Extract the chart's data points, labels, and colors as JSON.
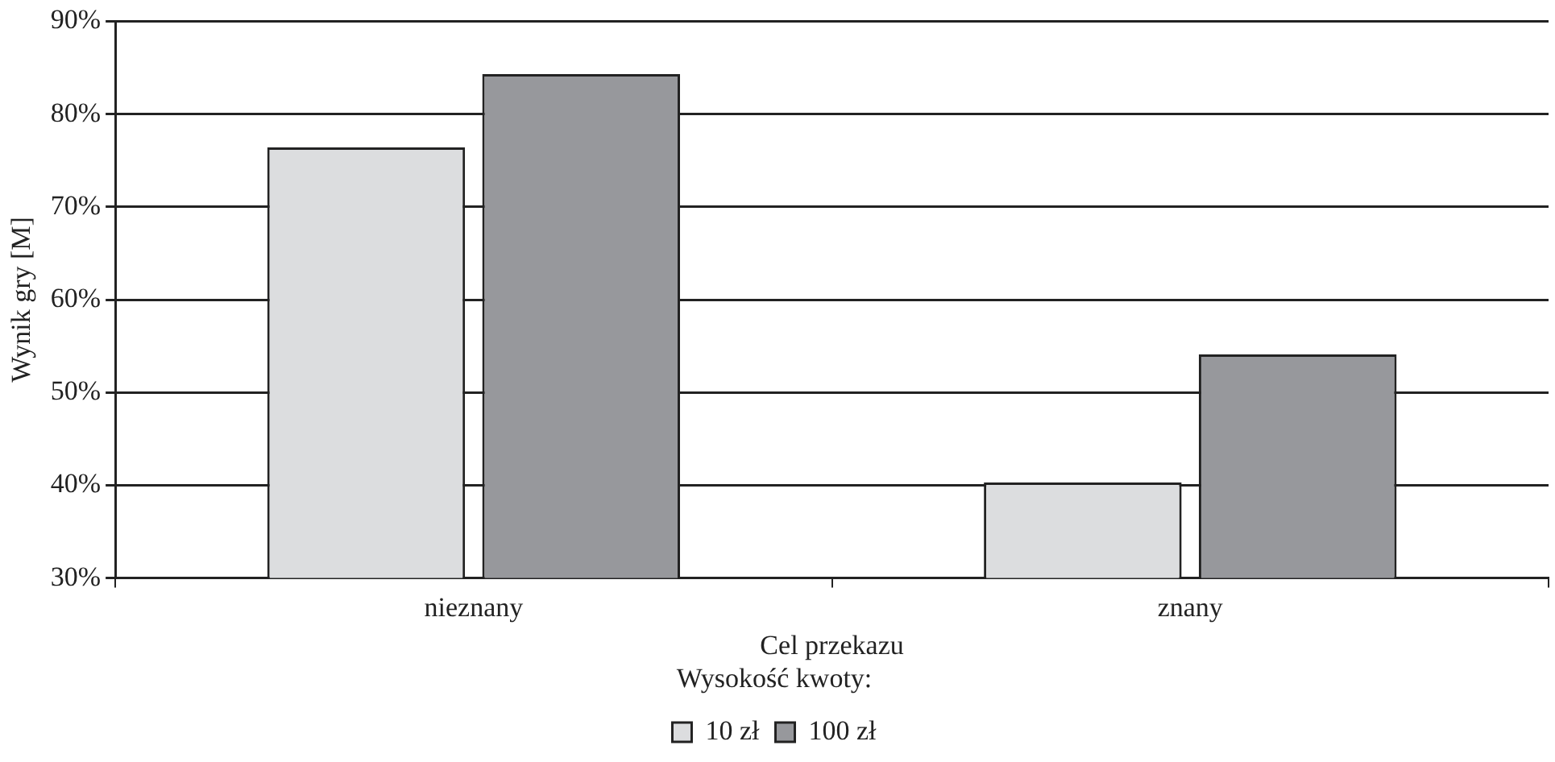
{
  "chart_data": {
    "type": "bar",
    "xlabel": "Cel przekazu",
    "ylabel": "Wynik gry [M]",
    "legend_title": "Wysokość kwoty:",
    "categories": [
      "nieznany",
      "znany"
    ],
    "series": [
      {
        "name": "10 zł",
        "color": "#dcdddf",
        "values": [
          76.4,
          40.3
        ]
      },
      {
        "name": "100 zł",
        "color": "#97989c",
        "values": [
          84.3,
          54.1
        ]
      }
    ],
    "ylim": [
      30,
      90
    ],
    "yticks": [
      {
        "value": 30,
        "label": "30%"
      },
      {
        "value": 40,
        "label": "40%"
      },
      {
        "value": 50,
        "label": "50%"
      },
      {
        "value": 60,
        "label": "60%"
      },
      {
        "value": 70,
        "label": "70%"
      },
      {
        "value": 80,
        "label": "80%"
      },
      {
        "value": 90,
        "label": "90%"
      }
    ],
    "grid": "y",
    "legend": "bottom"
  }
}
